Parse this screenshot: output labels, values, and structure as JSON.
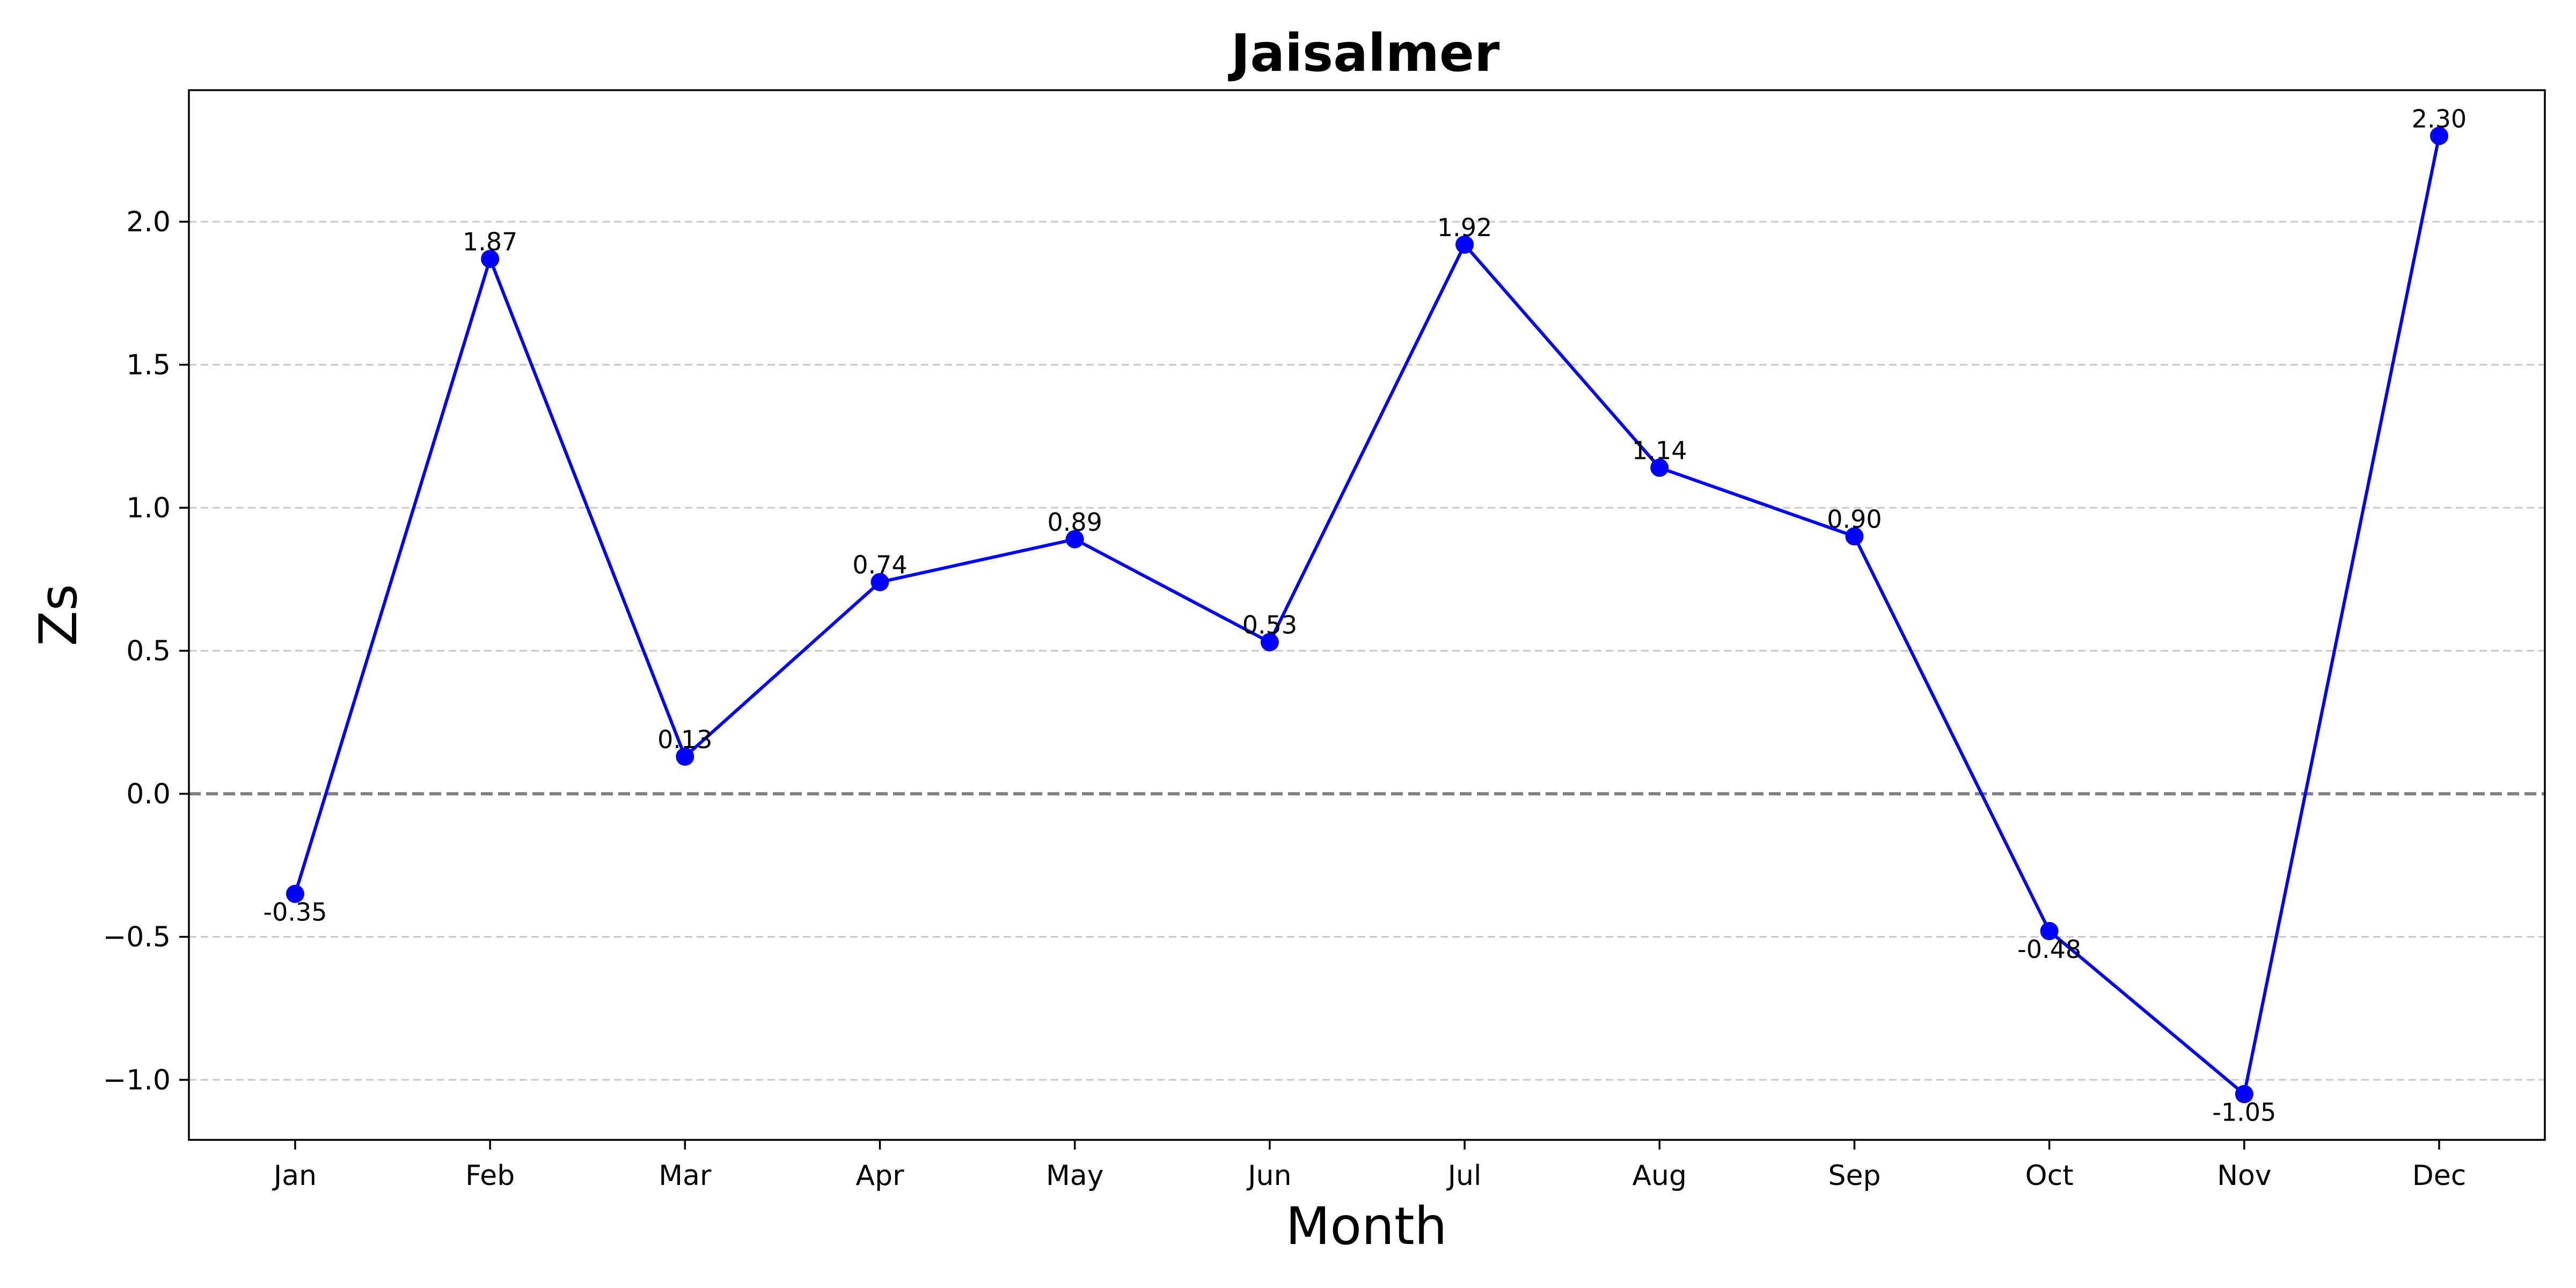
{
  "chart_data": {
    "type": "line",
    "title": "Jaisalmer",
    "xlabel": "Month",
    "ylabel": "Zs",
    "categories": [
      "Jan",
      "Feb",
      "Mar",
      "Apr",
      "May",
      "Jun",
      "Jul",
      "Aug",
      "Sep",
      "Oct",
      "Nov",
      "Dec"
    ],
    "series": [
      {
        "values": [
          -0.35,
          1.87,
          0.13,
          0.74,
          0.89,
          0.53,
          1.92,
          1.14,
          0.9,
          -0.48,
          -1.05,
          2.3
        ],
        "labels": [
          "-0.35",
          "1.87",
          "0.13",
          "0.74",
          "0.89",
          "0.53",
          "1.92",
          "1.14",
          "0.90",
          "-0.48",
          "-1.05",
          "2.30"
        ],
        "color": "#0000ff",
        "marker": "circle"
      }
    ],
    "yticks": [
      -1.0,
      -0.5,
      0.0,
      0.5,
      1.0,
      1.5,
      2.0
    ],
    "ytick_labels": [
      "−1.0",
      "−0.5",
      "0.0",
      "0.5",
      "1.0",
      "1.5",
      "2.0"
    ],
    "ylim": [
      -1.21,
      2.46
    ],
    "grid": "y, dashed",
    "reference_line": {
      "y": 0.0,
      "color": "#808080",
      "style": "dashed"
    }
  }
}
